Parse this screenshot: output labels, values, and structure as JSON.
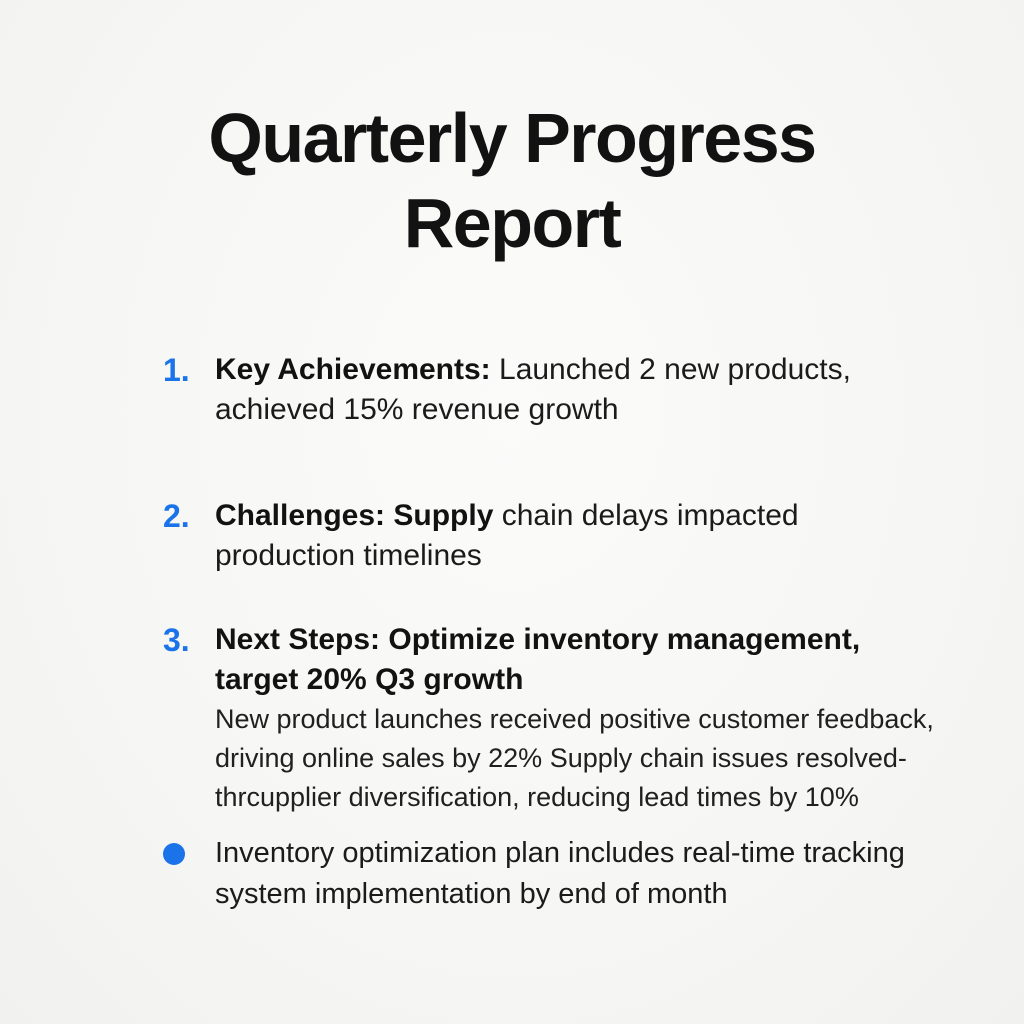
{
  "title": "Quarterly Progress Report",
  "colors": {
    "accent_blue": "#1a73e8",
    "text": "#161616",
    "background": "#f6f6f4"
  },
  "list": {
    "items": [
      {
        "number": "1.",
        "lead": "Key Achievements:",
        "rest": " Launched 2 new products, achieved 15% revenue growth"
      },
      {
        "number": "2.",
        "lead": "Challenges: Supply",
        "rest": " chain delays impacted production timelines"
      },
      {
        "number": "3.",
        "lead": "Next Steps: Optimize",
        "rest": " inventory management, target 20% Q3 growth"
      }
    ]
  },
  "paragraph": {
    "lines": [
      "New product launches received positive customer feedback,",
      "driving online sales by 22% Supply chain issues resolved-",
      "thrcupplier diversification, reducing lead times by 10%"
    ]
  },
  "bullet": {
    "text": "Inventory optimization plan includes real-time tracking system implementation by end of month"
  }
}
